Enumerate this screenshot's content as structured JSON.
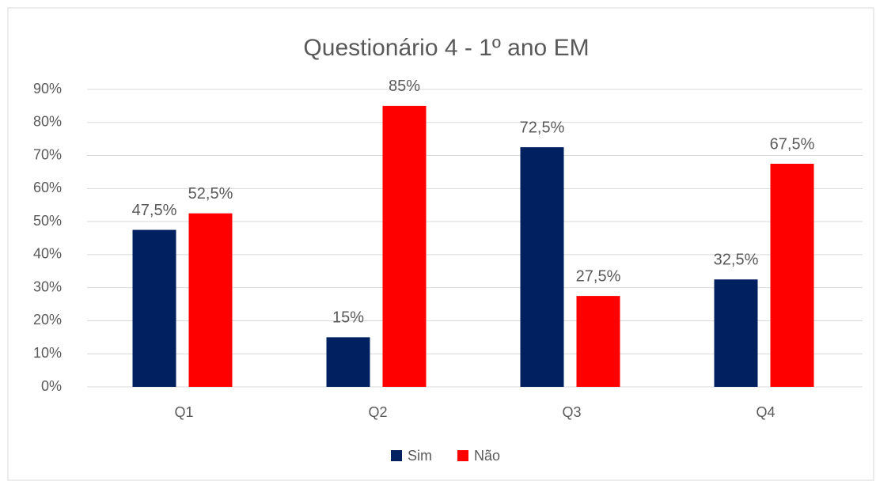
{
  "chart_data": {
    "type": "bar",
    "title": "Questionário 4 - 1º ano EM",
    "categories": [
      "Q1",
      "Q2",
      "Q3",
      "Q4"
    ],
    "series": [
      {
        "name": "Sim",
        "color": "#002060",
        "values": [
          47.5,
          15,
          72.5,
          32.5
        ],
        "value_labels": [
          "47,5%",
          "15%",
          "72,5%",
          "32,5%"
        ]
      },
      {
        "name": "Não",
        "color": "#ff0000",
        "values": [
          52.5,
          85,
          27.5,
          67.5
        ],
        "value_labels": [
          "52,5%",
          "85%",
          "27,5%",
          "67,5%"
        ]
      }
    ],
    "ylim": [
      0,
      90
    ],
    "yticks": [
      {
        "value": 0,
        "label": "0%"
      },
      {
        "value": 10,
        "label": "10%"
      },
      {
        "value": 20,
        "label": "20%"
      },
      {
        "value": 30,
        "label": "30%"
      },
      {
        "value": 40,
        "label": "40%"
      },
      {
        "value": 50,
        "label": "50%"
      },
      {
        "value": 60,
        "label": "60%"
      },
      {
        "value": 70,
        "label": "70%"
      },
      {
        "value": 80,
        "label": "80%"
      },
      {
        "value": 90,
        "label": "90%"
      }
    ],
    "grid": true,
    "legend": "bottom"
  }
}
